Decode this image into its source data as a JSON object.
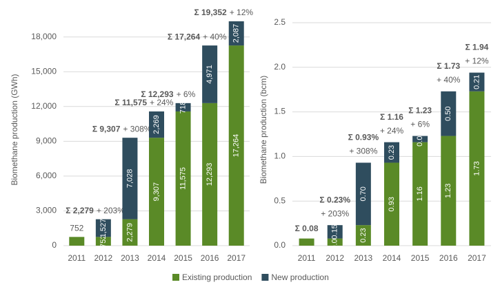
{
  "chart_data": [
    {
      "type": "bar",
      "stacked": true,
      "y_label": "Biomethane production (GWh)",
      "categories": [
        "2011",
        "2012",
        "2013",
        "2014",
        "2015",
        "2016",
        "2017"
      ],
      "series": [
        {
          "name": "Existing production",
          "color": "#5a8a27",
          "values": [
            752,
            752,
            2279,
            9307,
            11575,
            12293,
            17264
          ],
          "value_labels": [
            "752",
            "752",
            "2,279",
            "9,307",
            "11,575",
            "12,293",
            "17,264"
          ]
        },
        {
          "name": "New production",
          "color": "#2f4d5e",
          "values": [
            null,
            1527,
            7028,
            2269,
            718,
            4971,
            2087
          ],
          "value_labels": [
            null,
            "1,527",
            "7,028",
            "2,269",
            "718",
            "4,971",
            "2,087"
          ]
        }
      ],
      "totals": {
        "values": [
          null,
          2279,
          9307,
          11575,
          12293,
          17264,
          19352
        ],
        "value_labels": [
          null,
          "Σ 2,279",
          "Σ 9,307",
          "Σ 11,575",
          "Σ 12,293",
          "Σ 17,264",
          "Σ 19,352"
        ]
      },
      "growth_labels": [
        null,
        "+ 203%",
        "+ 308%",
        "+ 24%",
        "+ 6%",
        "+ 40%",
        "+ 12%"
      ],
      "ylim": [
        0,
        20000
      ],
      "yticks": [
        0,
        {
          "value": 3000,
          "label": "3,000"
        },
        {
          "value": 6000,
          "label": "6,000"
        },
        {
          "value": 9000,
          "label": "9,000"
        },
        {
          "value": 12000,
          "label": "12,000"
        },
        {
          "value": 15000,
          "label": "15,000"
        },
        {
          "value": 18000,
          "label": "18,000"
        }
      ],
      "grid": true,
      "legend": "bottom"
    },
    {
      "type": "bar",
      "stacked": true,
      "y_label": "Biomethane production (bcm)",
      "categories": [
        "2011",
        "2012",
        "2013",
        "2014",
        "2015",
        "2016",
        "2017"
      ],
      "series": [
        {
          "color": "#5a8a27",
          "values": [
            0.08,
            0.08,
            0.23,
            0.93,
            1.16,
            1.23,
            1.73
          ],
          "value_labels": [
            null,
            "0.08",
            "0.23",
            "0.93",
            "1.16",
            "1.23",
            "1.73"
          ]
        },
        {
          "color": "#2f4d5e",
          "values": [
            null,
            0.15,
            0.7,
            0.23,
            0.07,
            0.5,
            0.21
          ],
          "value_labels": [
            null,
            "0.15",
            "0.70",
            "0.23",
            "0.07",
            "0.50",
            "0.21"
          ]
        }
      ],
      "totals": {
        "values": [
          0.08,
          0.23,
          0.93,
          1.16,
          1.23,
          1.73,
          1.94
        ],
        "value_labels": [
          "Σ 0.08",
          "Σ 0.23%",
          "Σ 0.93%",
          "Σ 1.16",
          "Σ 1.23",
          "Σ 1.73",
          "Σ 1.94"
        ]
      },
      "growth_labels": [
        null,
        "+ 203%",
        "+ 308%",
        "+ 24%",
        "+ 6%",
        "+ 40%",
        "+ 12%"
      ],
      "ylim": [
        0,
        2.6
      ],
      "yticks": [
        {
          "value": 0,
          "label": "0.0"
        },
        0.5,
        {
          "value": 1,
          "label": "1.0"
        },
        1.5,
        {
          "value": 2,
          "label": "2.0"
        },
        2.5
      ],
      "grid": true
    }
  ]
}
